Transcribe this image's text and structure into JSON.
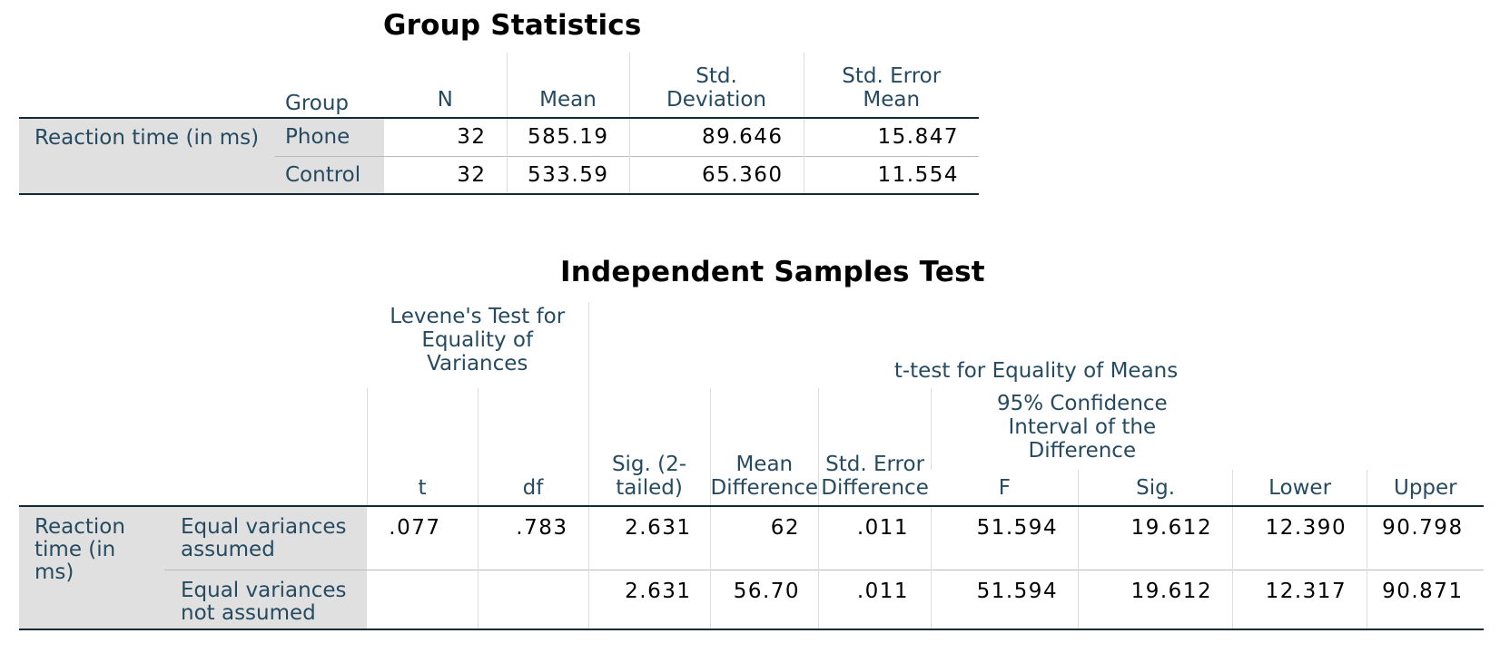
{
  "group_statistics": {
    "title": "Group Statistics",
    "headers": {
      "group": "Group",
      "n": "N",
      "mean": "Mean",
      "std_dev_line1": "Std.",
      "std_dev_line2": "Deviation",
      "std_err_line1": "Std. Error",
      "std_err_line2": "Mean"
    },
    "variable": "Reaction time (in ms)",
    "rows": [
      {
        "group": "Phone",
        "n": "32",
        "mean": "585.19",
        "std_dev": "89.646",
        "std_err": "15.847"
      },
      {
        "group": "Control",
        "n": "32",
        "mean": "533.59",
        "std_dev": "65.360",
        "std_err": "11.554"
      }
    ]
  },
  "independent_samples_test": {
    "title": "Independent Samples Test",
    "levene_header": {
      "line1": "Levene's Test for",
      "line2": "Equality of",
      "line3": "Variances"
    },
    "ttest_header": "t-test for Equality of Means",
    "ci_header": {
      "line1": "95% Confidence",
      "line2": "Interval of the",
      "line3": "Difference"
    },
    "columns": {
      "f": "F",
      "sig": "Sig.",
      "t": "t",
      "df": "df",
      "sig2_line1": "Sig. (2-",
      "sig2_line2": "tailed)",
      "mean_diff_line1": "Mean",
      "mean_diff_line2": "Difference",
      "std_err_diff_line1": "Std. Error",
      "std_err_diff_line2": "Difference",
      "lower": "Lower",
      "upper": "Upper"
    },
    "variable": {
      "line1": "Reaction",
      "line2": "time (in",
      "line3": "ms)"
    },
    "rows": [
      {
        "label_line1": "Equal variances",
        "label_line2": "assumed",
        "f": ".077",
        "sig": ".783",
        "t": "2.631",
        "df": "62",
        "sig2": ".011",
        "mean_diff": "51.594",
        "std_err_diff": "19.612",
        "lower": "12.390",
        "upper": "90.798"
      },
      {
        "label_line1": "Equal variances",
        "label_line2": "not assumed",
        "f": "",
        "sig": "",
        "t": "2.631",
        "df": "56.70",
        "sig2": ".011",
        "mean_diff": "51.594",
        "std_err_diff": "19.612",
        "lower": "12.317",
        "upper": "90.871"
      }
    ]
  }
}
